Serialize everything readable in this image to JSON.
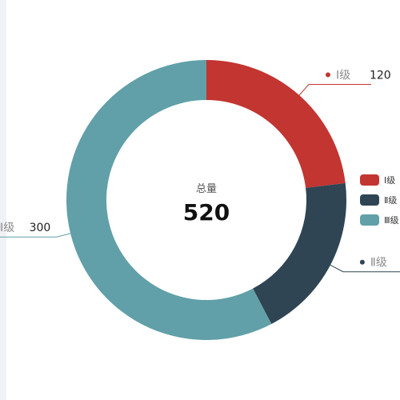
{
  "chart_data": {
    "type": "pie",
    "title": "",
    "categories": [
      "Ⅰ级",
      "Ⅱ级",
      "Ⅲ级"
    ],
    "values": [
      120,
      100,
      300
    ],
    "colors": [
      "#c23531",
      "#2f4554",
      "#61a0a8"
    ],
    "center": {
      "title": "总量",
      "value": "520"
    },
    "legend": {
      "position": "right",
      "items": [
        "Ⅰ级",
        "Ⅱ级",
        "Ⅲ级"
      ]
    },
    "donut": true,
    "clockwise": true
  }
}
